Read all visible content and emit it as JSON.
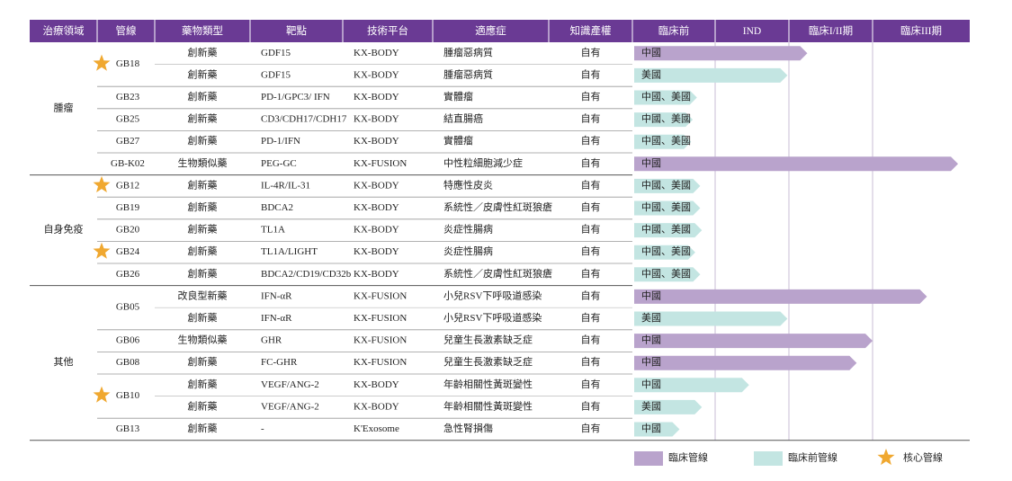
{
  "header": [
    "治療領域",
    "管線",
    "藥物類型",
    "靶點",
    "技術平台",
    "適應症",
    "知識產權",
    "臨床前",
    "IND",
    "臨床I/II期",
    "臨床III期"
  ],
  "areas": [
    {
      "name": "腫瘤",
      "pipelines": [
        {
          "code": "GB18",
          "core": true,
          "rows": [
            {
              "type": "創新藥",
              "target": "GDF15",
              "platform": "KX-BODY",
              "indication": "腫瘤惡病質",
              "ip": "自有",
              "region": "中國",
              "progress": 2.22,
              "color": "#b9a3cc"
            },
            {
              "type": "創新藥",
              "target": "GDF15",
              "platform": "KX-BODY",
              "indication": "腫瘤惡病質",
              "ip": "自有",
              "region": "美國",
              "progress": 1.98,
              "color": "#c3e5e2"
            }
          ]
        },
        {
          "code": "GB23",
          "core": false,
          "rows": [
            {
              "type": "創新藥",
              "target": "PD-1/GPC3/ IFN",
              "platform": "KX-BODY",
              "indication": "實體瘤",
              "ip": "自有",
              "region": "中國、美國",
              "progress": 0.78,
              "color": "#c3e5e2"
            }
          ]
        },
        {
          "code": "GB25",
          "core": false,
          "rows": [
            {
              "type": "創新藥",
              "target": "CD3/CDH17/CDH17",
              "platform": "KX-BODY",
              "indication": "結直腸癌",
              "ip": "自有",
              "region": "中國、美國",
              "progress": 0.73,
              "color": "#c3e5e2"
            }
          ]
        },
        {
          "code": "GB27",
          "core": false,
          "rows": [
            {
              "type": "創新藥",
              "target": "PD-1/IFN",
              "platform": "KX-BODY",
              "indication": "實體瘤",
              "ip": "自有",
              "region": "中國、美國",
              "progress": 0.71,
              "color": "#c3e5e2"
            }
          ]
        },
        {
          "code": "GB-K02",
          "core": false,
          "rows": [
            {
              "type": "生物類似藥",
              "target": "PEG-GC",
              "platform": "KX-FUSION",
              "indication": "中性粒細胞減少症",
              "ip": "自有",
              "region": "中國",
              "progress": 3.88,
              "color": "#b9a3cc"
            }
          ]
        }
      ]
    },
    {
      "name": "自身免疫",
      "pipelines": [
        {
          "code": "GB12",
          "core": true,
          "rows": [
            {
              "type": "創新藥",
              "target": "IL-4R/IL-31",
              "platform": "KX-BODY",
              "indication": "特應性皮炎",
              "ip": "自有",
              "region": "中國、美國",
              "progress": 0.82,
              "color": "#c3e5e2"
            }
          ]
        },
        {
          "code": "GB19",
          "core": false,
          "rows": [
            {
              "type": "創新藥",
              "target": "BDCA2",
              "platform": "KX-BODY",
              "indication": "系統性／皮膚性紅斑狼瘡",
              "ip": "自有",
              "region": "中國、美國",
              "progress": 0.82,
              "color": "#c3e5e2"
            }
          ]
        },
        {
          "code": "GB20",
          "core": false,
          "rows": [
            {
              "type": "創新藥",
              "target": "TL1A",
              "platform": "KX-BODY",
              "indication": "炎症性腸病",
              "ip": "自有",
              "region": "中國、美國",
              "progress": 0.84,
              "color": "#c3e5e2"
            }
          ]
        },
        {
          "code": "GB24",
          "core": true,
          "rows": [
            {
              "type": "創新藥",
              "target": "TL1A/LIGHT",
              "platform": "KX-BODY",
              "indication": "炎症性腸病",
              "ip": "自有",
              "region": "中國、美國",
              "progress": 0.76,
              "color": "#c3e5e2"
            }
          ]
        },
        {
          "code": "GB26",
          "core": false,
          "rows": [
            {
              "type": "創新藥",
              "target": "BDCA2/CD19/CD32b",
              "platform": "KX-BODY",
              "indication": "系統性／皮膚性紅斑狼瘡",
              "ip": "自有",
              "region": "中國、美國",
              "progress": 0.82,
              "color": "#c3e5e2"
            }
          ]
        }
      ]
    },
    {
      "name": "其他",
      "pipelines": [
        {
          "code": "GB05",
          "core": false,
          "rows": [
            {
              "type": "改良型新藥",
              "target": "IFN-αR",
              "platform": "KX-FUSION",
              "indication": "小兒RSV下呼吸道感染",
              "ip": "自有",
              "region": "中國",
              "progress": 3.56,
              "color": "#b9a3cc"
            },
            {
              "type": "創新藥",
              "target": "IFN-αR",
              "platform": "KX-FUSION",
              "indication": "小兒RSV下呼吸道感染",
              "ip": "自有",
              "region": "美國",
              "progress": 1.98,
              "color": "#c3e5e2"
            }
          ]
        },
        {
          "code": "GB06",
          "core": false,
          "rows": [
            {
              "type": "生物類似藥",
              "target": "GHR",
              "platform": "KX-FUSION",
              "indication": "兒童生長激素缺乏症",
              "ip": "自有",
              "region": "中國",
              "progress": 3.0,
              "color": "#b9a3cc"
            }
          ]
        },
        {
          "code": "GB08",
          "core": false,
          "rows": [
            {
              "type": "創新藥",
              "target": "FC-GHR",
              "platform": "KX-FUSION",
              "indication": "兒童生長激素缺乏症",
              "ip": "自有",
              "region": "中國",
              "progress": 2.81,
              "color": "#b9a3cc"
            }
          ]
        },
        {
          "code": "GB10",
          "core": true,
          "rows": [
            {
              "type": "創新藥",
              "target": "VEGF/ANG-2",
              "platform": "KX-BODY",
              "indication": "年齡相關性黃斑變性",
              "ip": "自有",
              "region": "中國",
              "progress": 1.46,
              "color": "#c3e5e2"
            },
            {
              "type": "創新藥",
              "target": "VEGF/ANG-2",
              "platform": "KX-BODY",
              "indication": "年齡相關性黃斑變性",
              "ip": "自有",
              "region": "美國",
              "progress": 0.84,
              "color": "#c3e5e2"
            }
          ]
        },
        {
          "code": "GB13",
          "core": false,
          "rows": [
            {
              "type": "創新藥",
              "target": "-",
              "platform": "K'Exosome",
              "indication": "急性腎損傷",
              "ip": "自有",
              "region": "中國",
              "progress": 0.57,
              "color": "#c3e5e2"
            }
          ]
        }
      ]
    }
  ],
  "legend": [
    {
      "label": "臨床管線",
      "color": "#b9a3cc"
    },
    {
      "label": "臨床前管線",
      "color": "#c3e5e2"
    },
    {
      "label": "核心管線",
      "color": "#f0a830"
    }
  ]
}
